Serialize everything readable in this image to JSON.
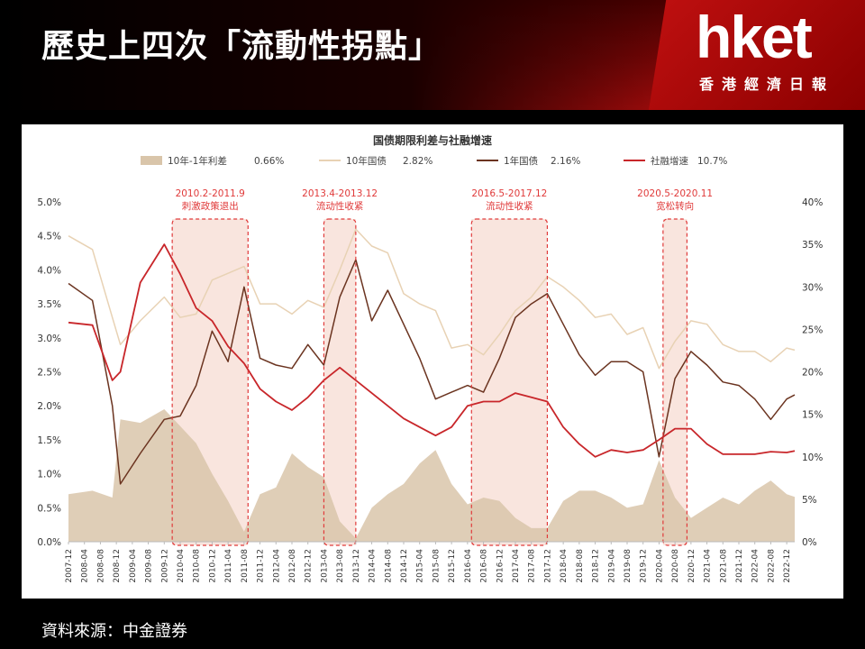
{
  "header": {
    "title": "歷史上四次「流動性拐點」",
    "logo": "hket",
    "logo_sub": "香港經濟日報"
  },
  "footer": {
    "source": "資料來源：中金證券"
  },
  "colors": {
    "spread_fill": "#d9c5aa",
    "bond10": "#e8d2b4",
    "bond1": "#6b3420",
    "social": "#c8262a",
    "highlight_fill": "#f9e5de",
    "highlight_stroke": "#e03a3a"
  },
  "chart_data": {
    "type": "line",
    "title": "国债期限利差与社融增速",
    "legend_placement": "top",
    "y_left": {
      "ticks": [
        "5.0%",
        "4.5%",
        "4.0%",
        "3.5%",
        "3.0%",
        "2.5%",
        "2.0%",
        "1.5%",
        "1.0%",
        "0.5%",
        "0.0%"
      ],
      "range": [
        0,
        5
      ]
    },
    "y_right": {
      "ticks": [
        "40%",
        "35%",
        "30%",
        "25%",
        "20%",
        "15%",
        "10%",
        "5%",
        "0%"
      ],
      "range": [
        0,
        40
      ]
    },
    "x_ticks": [
      "2007-12",
      "2008-04",
      "2008-08",
      "2008-12",
      "2009-04",
      "2009-08",
      "2009-12",
      "2010-04",
      "2010-08",
      "2010-12",
      "2011-04",
      "2011-08",
      "2011-12",
      "2012-04",
      "2012-08",
      "2012-12",
      "2013-04",
      "2013-08",
      "2013-12",
      "2014-04",
      "2014-08",
      "2014-12",
      "2015-04",
      "2015-08",
      "2015-12",
      "2016-04",
      "2016-08",
      "2016-12",
      "2017-04",
      "2017-08",
      "2017-12",
      "2018-04",
      "2018-08",
      "2018-12",
      "2019-04",
      "2019-08",
      "2019-12",
      "2020-04",
      "2020-08",
      "2020-12",
      "2021-04",
      "2021-08",
      "2021-12",
      "2022-04",
      "2022-08",
      "2022-12"
    ],
    "x_range": [
      "2007-12",
      "2023-02"
    ],
    "series": [
      {
        "name": "10年-1年利差",
        "value_label": "0.66%",
        "axis": "left",
        "style": "area",
        "points": [
          [
            "2007-12",
            0.7
          ],
          [
            "2008-06",
            0.75
          ],
          [
            "2008-11",
            0.65
          ],
          [
            "2009-01",
            1.8
          ],
          [
            "2009-06",
            1.75
          ],
          [
            "2009-12",
            1.95
          ],
          [
            "2010-04",
            1.7
          ],
          [
            "2010-08",
            1.45
          ],
          [
            "2010-12",
            1.0
          ],
          [
            "2011-04",
            0.6
          ],
          [
            "2011-08",
            0.15
          ],
          [
            "2011-12",
            0.7
          ],
          [
            "2012-04",
            0.8
          ],
          [
            "2012-08",
            1.3
          ],
          [
            "2012-12",
            1.1
          ],
          [
            "2013-04",
            0.95
          ],
          [
            "2013-08",
            0.3
          ],
          [
            "2013-12",
            0.05
          ],
          [
            "2014-04",
            0.5
          ],
          [
            "2014-08",
            0.7
          ],
          [
            "2014-12",
            0.85
          ],
          [
            "2015-04",
            1.15
          ],
          [
            "2015-08",
            1.35
          ],
          [
            "2015-12",
            0.85
          ],
          [
            "2016-04",
            0.55
          ],
          [
            "2016-08",
            0.65
          ],
          [
            "2016-12",
            0.6
          ],
          [
            "2017-04",
            0.35
          ],
          [
            "2017-08",
            0.2
          ],
          [
            "2017-12",
            0.2
          ],
          [
            "2018-04",
            0.6
          ],
          [
            "2018-08",
            0.75
          ],
          [
            "2018-12",
            0.75
          ],
          [
            "2019-04",
            0.65
          ],
          [
            "2019-08",
            0.5
          ],
          [
            "2019-12",
            0.55
          ],
          [
            "2020-04",
            1.2
          ],
          [
            "2020-08",
            0.65
          ],
          [
            "2020-12",
            0.35
          ],
          [
            "2021-04",
            0.5
          ],
          [
            "2021-08",
            0.65
          ],
          [
            "2021-12",
            0.55
          ],
          [
            "2022-04",
            0.75
          ],
          [
            "2022-08",
            0.9
          ],
          [
            "2022-12",
            0.7
          ],
          [
            "2023-02",
            0.66
          ]
        ]
      },
      {
        "name": "10年国债",
        "value_label": "2.82%",
        "axis": "left",
        "style": "line",
        "points": [
          [
            "2007-12",
            4.5
          ],
          [
            "2008-06",
            4.3
          ],
          [
            "2008-11",
            3.3
          ],
          [
            "2009-01",
            2.9
          ],
          [
            "2009-06",
            3.25
          ],
          [
            "2009-12",
            3.6
          ],
          [
            "2010-04",
            3.3
          ],
          [
            "2010-08",
            3.35
          ],
          [
            "2010-12",
            3.85
          ],
          [
            "2011-04",
            3.95
          ],
          [
            "2011-08",
            4.05
          ],
          [
            "2011-12",
            3.5
          ],
          [
            "2012-04",
            3.5
          ],
          [
            "2012-08",
            3.35
          ],
          [
            "2012-12",
            3.55
          ],
          [
            "2013-04",
            3.45
          ],
          [
            "2013-08",
            4.0
          ],
          [
            "2013-12",
            4.6
          ],
          [
            "2014-04",
            4.35
          ],
          [
            "2014-08",
            4.25
          ],
          [
            "2014-12",
            3.65
          ],
          [
            "2015-04",
            3.5
          ],
          [
            "2015-08",
            3.4
          ],
          [
            "2015-12",
            2.85
          ],
          [
            "2016-04",
            2.9
          ],
          [
            "2016-08",
            2.75
          ],
          [
            "2016-12",
            3.05
          ],
          [
            "2017-04",
            3.4
          ],
          [
            "2017-08",
            3.6
          ],
          [
            "2017-12",
            3.9
          ],
          [
            "2018-04",
            3.75
          ],
          [
            "2018-08",
            3.55
          ],
          [
            "2018-12",
            3.3
          ],
          [
            "2019-04",
            3.35
          ],
          [
            "2019-08",
            3.05
          ],
          [
            "2019-12",
            3.15
          ],
          [
            "2020-04",
            2.55
          ],
          [
            "2020-08",
            2.95
          ],
          [
            "2020-12",
            3.25
          ],
          [
            "2021-04",
            3.2
          ],
          [
            "2021-08",
            2.9
          ],
          [
            "2021-12",
            2.8
          ],
          [
            "2022-04",
            2.8
          ],
          [
            "2022-08",
            2.65
          ],
          [
            "2022-12",
            2.85
          ],
          [
            "2023-02",
            2.82
          ]
        ]
      },
      {
        "name": "1年国债",
        "value_label": "2.16%",
        "axis": "left",
        "style": "line",
        "points": [
          [
            "2007-12",
            3.8
          ],
          [
            "2008-06",
            3.55
          ],
          [
            "2008-11",
            2.0
          ],
          [
            "2009-01",
            0.85
          ],
          [
            "2009-06",
            1.3
          ],
          [
            "2009-12",
            1.8
          ],
          [
            "2010-04",
            1.85
          ],
          [
            "2010-08",
            2.3
          ],
          [
            "2010-12",
            3.1
          ],
          [
            "2011-04",
            2.65
          ],
          [
            "2011-08",
            3.75
          ],
          [
            "2011-12",
            2.7
          ],
          [
            "2012-04",
            2.6
          ],
          [
            "2012-08",
            2.55
          ],
          [
            "2012-12",
            2.9
          ],
          [
            "2013-04",
            2.6
          ],
          [
            "2013-08",
            3.6
          ],
          [
            "2013-12",
            4.15
          ],
          [
            "2014-04",
            3.25
          ],
          [
            "2014-08",
            3.7
          ],
          [
            "2014-12",
            3.2
          ],
          [
            "2015-04",
            2.7
          ],
          [
            "2015-08",
            2.1
          ],
          [
            "2015-12",
            2.2
          ],
          [
            "2016-04",
            2.3
          ],
          [
            "2016-08",
            2.2
          ],
          [
            "2016-12",
            2.7
          ],
          [
            "2017-04",
            3.3
          ],
          [
            "2017-08",
            3.5
          ],
          [
            "2017-12",
            3.65
          ],
          [
            "2018-04",
            3.2
          ],
          [
            "2018-08",
            2.75
          ],
          [
            "2018-12",
            2.45
          ],
          [
            "2019-04",
            2.65
          ],
          [
            "2019-08",
            2.65
          ],
          [
            "2019-12",
            2.5
          ],
          [
            "2020-04",
            1.25
          ],
          [
            "2020-08",
            2.4
          ],
          [
            "2020-12",
            2.8
          ],
          [
            "2021-04",
            2.6
          ],
          [
            "2021-08",
            2.35
          ],
          [
            "2021-12",
            2.3
          ],
          [
            "2022-04",
            2.1
          ],
          [
            "2022-08",
            1.8
          ],
          [
            "2022-12",
            2.1
          ],
          [
            "2023-02",
            2.16
          ]
        ]
      },
      {
        "name": "社融增速",
        "value_label": "10.7%",
        "axis": "right",
        "style": "line",
        "points": [
          [
            "2007-12",
            25.8
          ],
          [
            "2008-06",
            25.5
          ],
          [
            "2008-11",
            19.0
          ],
          [
            "2009-01",
            20.0
          ],
          [
            "2009-06",
            30.5
          ],
          [
            "2009-12",
            35.0
          ],
          [
            "2010-04",
            31.5
          ],
          [
            "2010-08",
            27.5
          ],
          [
            "2010-12",
            26.0
          ],
          [
            "2011-04",
            23.0
          ],
          [
            "2011-08",
            21.0
          ],
          [
            "2011-12",
            18.0
          ],
          [
            "2012-04",
            16.5
          ],
          [
            "2012-08",
            15.5
          ],
          [
            "2012-12",
            17.0
          ],
          [
            "2013-04",
            19.0
          ],
          [
            "2013-08",
            20.5
          ],
          [
            "2013-12",
            19.0
          ],
          [
            "2014-04",
            17.5
          ],
          [
            "2014-08",
            16.0
          ],
          [
            "2014-12",
            14.5
          ],
          [
            "2015-04",
            13.5
          ],
          [
            "2015-08",
            12.5
          ],
          [
            "2015-12",
            13.5
          ],
          [
            "2016-04",
            16.0
          ],
          [
            "2016-08",
            16.5
          ],
          [
            "2016-12",
            16.5
          ],
          [
            "2017-04",
            17.5
          ],
          [
            "2017-08",
            17.0
          ],
          [
            "2017-12",
            16.5
          ],
          [
            "2018-04",
            13.5
          ],
          [
            "2018-08",
            11.5
          ],
          [
            "2018-12",
            10.0
          ],
          [
            "2019-04",
            10.8
          ],
          [
            "2019-08",
            10.5
          ],
          [
            "2019-12",
            10.8
          ],
          [
            "2020-04",
            12.0
          ],
          [
            "2020-08",
            13.3
          ],
          [
            "2020-12",
            13.3
          ],
          [
            "2021-04",
            11.5
          ],
          [
            "2021-08",
            10.3
          ],
          [
            "2021-12",
            10.3
          ],
          [
            "2022-04",
            10.3
          ],
          [
            "2022-08",
            10.6
          ],
          [
            "2022-12",
            10.5
          ],
          [
            "2023-02",
            10.7
          ]
        ]
      }
    ],
    "highlights": [
      {
        "from": "2010-02",
        "to": "2011-09",
        "label_top": "2010.2-2011.9",
        "label_bottom": "刺激政策退出"
      },
      {
        "from": "2013-04",
        "to": "2013-12",
        "label_top": "2013.4-2013.12",
        "label_bottom": "流动性收紧"
      },
      {
        "from": "2016-05",
        "to": "2017-12",
        "label_top": "2016.5-2017.12",
        "label_bottom": "流动性收紧"
      },
      {
        "from": "2020-05",
        "to": "2020-11",
        "label_top": "2020.5-2020.11",
        "label_bottom": "宽松转向"
      }
    ]
  }
}
